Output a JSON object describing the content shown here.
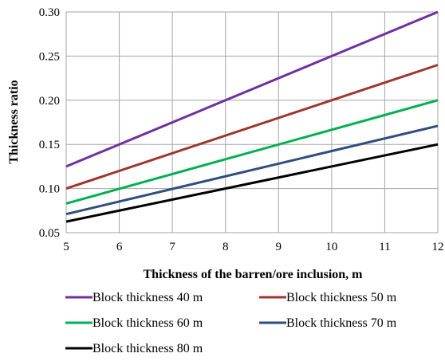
{
  "chart_data": {
    "type": "line",
    "title": "",
    "xlabel": "Thickness of the barren/ore inclusion, m",
    "ylabel": "Thickness ratio",
    "xlim": [
      5,
      12
    ],
    "ylim": [
      0.05,
      0.3
    ],
    "xticks": [
      "5",
      "6",
      "7",
      "8",
      "9",
      "10",
      "11",
      "12"
    ],
    "yticks": [
      "0.05",
      "0.10",
      "0.15",
      "0.20",
      "0.25",
      "0.30"
    ],
    "grid": true,
    "legend_position": "bottom",
    "x": [
      5,
      12
    ],
    "series": [
      {
        "name": "Block thickness 40 m",
        "color": "#7030A0",
        "values": [
          0.125,
          0.3
        ]
      },
      {
        "name": "Block thickness 50 m",
        "color": "#A0342E",
        "values": [
          0.1,
          0.24
        ]
      },
      {
        "name": "Block thickness 60 m",
        "color": "#00B050",
        "values": [
          0.083,
          0.2
        ]
      },
      {
        "name": "Block thickness 70 m",
        "color": "#2E4E7E",
        "values": [
          0.071,
          0.171
        ]
      },
      {
        "name": "Block thickness 80 m",
        "color": "#000000",
        "values": [
          0.0625,
          0.15
        ]
      }
    ]
  }
}
